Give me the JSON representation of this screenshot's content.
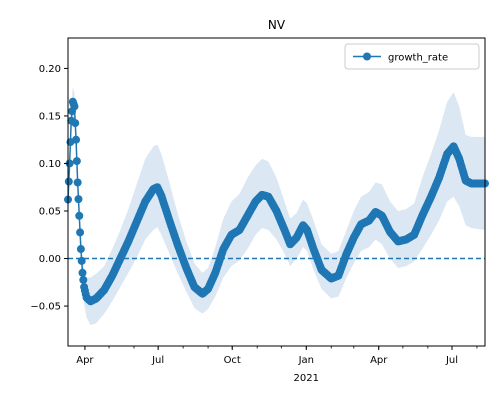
{
  "chart_data": {
    "type": "line",
    "title": "NV",
    "xlabel": "",
    "ylabel": "",
    "x_domain": [
      "2020-03-11",
      "2021-08-11"
    ],
    "ylim": [
      -0.092,
      0.232
    ],
    "y_ticks": [
      -0.05,
      0.0,
      0.05,
      0.1,
      0.15,
      0.2
    ],
    "y_tick_labels": [
      "−0.05",
      "0.00",
      "0.05",
      "0.10",
      "0.15",
      "0.20"
    ],
    "x_ticks": [
      {
        "date": "2020-04-01",
        "label": "Apr",
        "sublabel": ""
      },
      {
        "date": "2020-07-01",
        "label": "Jul",
        "sublabel": ""
      },
      {
        "date": "2020-10-01",
        "label": "Oct",
        "sublabel": ""
      },
      {
        "date": "2021-01-01",
        "label": "Jan",
        "sublabel": "2021"
      },
      {
        "date": "2021-04-01",
        "label": "Apr",
        "sublabel": ""
      },
      {
        "date": "2021-07-01",
        "label": "Jul",
        "sublabel": ""
      }
    ],
    "reference_line": {
      "y": 0,
      "style": "dashed",
      "color": "#1f77b4"
    },
    "legend": {
      "placement": "top-right",
      "entries": [
        "growth_rate"
      ]
    },
    "grid": false,
    "series": [
      {
        "name": "growth_rate",
        "color": "#1f77b4",
        "marker": "circle",
        "band_color": "#dbe8f4",
        "points": [
          {
            "date": "2020-03-11",
            "y": 0.062,
            "lo": 0.055,
            "hi": 0.07
          },
          {
            "date": "2020-03-13",
            "y": 0.1,
            "lo": 0.09,
            "hi": 0.11
          },
          {
            "date": "2020-03-15",
            "y": 0.145,
            "lo": 0.13,
            "hi": 0.16
          },
          {
            "date": "2020-03-17",
            "y": 0.165,
            "lo": 0.15,
            "hi": 0.18
          },
          {
            "date": "2020-03-19",
            "y": 0.16,
            "lo": 0.145,
            "hi": 0.175
          },
          {
            "date": "2020-03-21",
            "y": 0.125,
            "lo": 0.11,
            "hi": 0.14
          },
          {
            "date": "2020-03-23",
            "y": 0.08,
            "lo": 0.065,
            "hi": 0.095
          },
          {
            "date": "2020-03-25",
            "y": 0.045,
            "lo": 0.032,
            "hi": 0.058
          },
          {
            "date": "2020-03-27",
            "y": 0.01,
            "lo": -0.002,
            "hi": 0.022
          },
          {
            "date": "2020-03-29",
            "y": -0.015,
            "lo": -0.03,
            "hi": 0.0
          },
          {
            "date": "2020-03-31",
            "y": -0.03,
            "lo": -0.048,
            "hi": -0.012
          },
          {
            "date": "2020-04-03",
            "y": -0.041,
            "lo": -0.062,
            "hi": -0.02
          },
          {
            "date": "2020-04-08",
            "y": -0.045,
            "lo": -0.07,
            "hi": -0.02
          },
          {
            "date": "2020-04-15",
            "y": -0.042,
            "lo": -0.068,
            "hi": -0.016
          },
          {
            "date": "2020-04-25",
            "y": -0.033,
            "lo": -0.058,
            "hi": -0.008
          },
          {
            "date": "2020-05-05",
            "y": -0.018,
            "lo": -0.045,
            "hi": 0.01
          },
          {
            "date": "2020-05-15",
            "y": 0.0,
            "lo": -0.03,
            "hi": 0.03
          },
          {
            "date": "2020-05-25",
            "y": 0.018,
            "lo": -0.015,
            "hi": 0.052
          },
          {
            "date": "2020-06-05",
            "y": 0.04,
            "lo": 0.002,
            "hi": 0.08
          },
          {
            "date": "2020-06-15",
            "y": 0.06,
            "lo": 0.02,
            "hi": 0.105
          },
          {
            "date": "2020-06-25",
            "y": 0.073,
            "lo": 0.03,
            "hi": 0.118
          },
          {
            "date": "2020-06-30",
            "y": 0.075,
            "lo": 0.033,
            "hi": 0.12
          },
          {
            "date": "2020-07-05",
            "y": 0.066,
            "lo": 0.025,
            "hi": 0.11
          },
          {
            "date": "2020-07-15",
            "y": 0.04,
            "lo": 0.005,
            "hi": 0.08
          },
          {
            "date": "2020-07-25",
            "y": 0.015,
            "lo": -0.015,
            "hi": 0.048
          },
          {
            "date": "2020-08-05",
            "y": -0.01,
            "lo": -0.035,
            "hi": 0.018
          },
          {
            "date": "2020-08-15",
            "y": -0.03,
            "lo": -0.052,
            "hi": -0.005
          },
          {
            "date": "2020-08-25",
            "y": -0.037,
            "lo": -0.058,
            "hi": -0.015
          },
          {
            "date": "2020-09-01",
            "y": -0.032,
            "lo": -0.053,
            "hi": -0.01
          },
          {
            "date": "2020-09-10",
            "y": -0.015,
            "lo": -0.04,
            "hi": 0.012
          },
          {
            "date": "2020-09-20",
            "y": 0.01,
            "lo": -0.02,
            "hi": 0.042
          },
          {
            "date": "2020-09-30",
            "y": 0.025,
            "lo": -0.008,
            "hi": 0.06
          },
          {
            "date": "2020-10-10",
            "y": 0.03,
            "lo": -0.002,
            "hi": 0.068
          },
          {
            "date": "2020-10-20",
            "y": 0.045,
            "lo": 0.01,
            "hi": 0.085
          },
          {
            "date": "2020-10-30",
            "y": 0.06,
            "lo": 0.025,
            "hi": 0.098
          },
          {
            "date": "2020-11-07",
            "y": 0.067,
            "lo": 0.032,
            "hi": 0.105
          },
          {
            "date": "2020-11-15",
            "y": 0.065,
            "lo": 0.03,
            "hi": 0.102
          },
          {
            "date": "2020-11-25",
            "y": 0.05,
            "lo": 0.02,
            "hi": 0.085
          },
          {
            "date": "2020-12-05",
            "y": 0.03,
            "lo": 0.005,
            "hi": 0.06
          },
          {
            "date": "2020-12-12",
            "y": 0.015,
            "lo": -0.008,
            "hi": 0.042
          },
          {
            "date": "2020-12-20",
            "y": 0.022,
            "lo": 0.0,
            "hi": 0.048
          },
          {
            "date": "2020-12-28",
            "y": 0.035,
            "lo": 0.012,
            "hi": 0.062
          },
          {
            "date": "2021-01-02",
            "y": 0.03,
            "lo": 0.008,
            "hi": 0.058
          },
          {
            "date": "2021-01-10",
            "y": 0.01,
            "lo": -0.012,
            "hi": 0.04
          },
          {
            "date": "2021-01-20",
            "y": -0.012,
            "lo": -0.032,
            "hi": 0.015
          },
          {
            "date": "2021-02-01",
            "y": -0.021,
            "lo": -0.042,
            "hi": 0.005
          },
          {
            "date": "2021-02-10",
            "y": -0.018,
            "lo": -0.04,
            "hi": 0.008
          },
          {
            "date": "2021-02-20",
            "y": 0.005,
            "lo": -0.02,
            "hi": 0.03
          },
          {
            "date": "2021-03-01",
            "y": 0.022,
            "lo": -0.005,
            "hi": 0.05
          },
          {
            "date": "2021-03-10",
            "y": 0.036,
            "lo": 0.008,
            "hi": 0.065
          },
          {
            "date": "2021-03-20",
            "y": 0.04,
            "lo": 0.012,
            "hi": 0.07
          },
          {
            "date": "2021-03-28",
            "y": 0.049,
            "lo": 0.02,
            "hi": 0.08
          },
          {
            "date": "2021-04-05",
            "y": 0.045,
            "lo": 0.015,
            "hi": 0.078
          },
          {
            "date": "2021-04-15",
            "y": 0.028,
            "lo": 0.0,
            "hi": 0.06
          },
          {
            "date": "2021-04-25",
            "y": 0.018,
            "lo": -0.01,
            "hi": 0.05
          },
          {
            "date": "2021-05-05",
            "y": 0.02,
            "lo": -0.008,
            "hi": 0.052
          },
          {
            "date": "2021-05-15",
            "y": 0.025,
            "lo": -0.003,
            "hi": 0.058
          },
          {
            "date": "2021-05-25",
            "y": 0.045,
            "lo": 0.01,
            "hi": 0.085
          },
          {
            "date": "2021-06-05",
            "y": 0.065,
            "lo": 0.025,
            "hi": 0.11
          },
          {
            "date": "2021-06-15",
            "y": 0.085,
            "lo": 0.04,
            "hi": 0.135
          },
          {
            "date": "2021-06-25",
            "y": 0.11,
            "lo": 0.06,
            "hi": 0.165
          },
          {
            "date": "2021-07-03",
            "y": 0.118,
            "lo": 0.065,
            "hi": 0.175
          },
          {
            "date": "2021-07-10",
            "y": 0.105,
            "lo": 0.055,
            "hi": 0.16
          },
          {
            "date": "2021-07-18",
            "y": 0.082,
            "lo": 0.035,
            "hi": 0.13
          },
          {
            "date": "2021-07-25",
            "y": 0.079,
            "lo": 0.032,
            "hi": 0.128
          },
          {
            "date": "2021-08-11",
            "y": 0.079,
            "lo": 0.03,
            "hi": 0.128
          }
        ]
      }
    ]
  }
}
